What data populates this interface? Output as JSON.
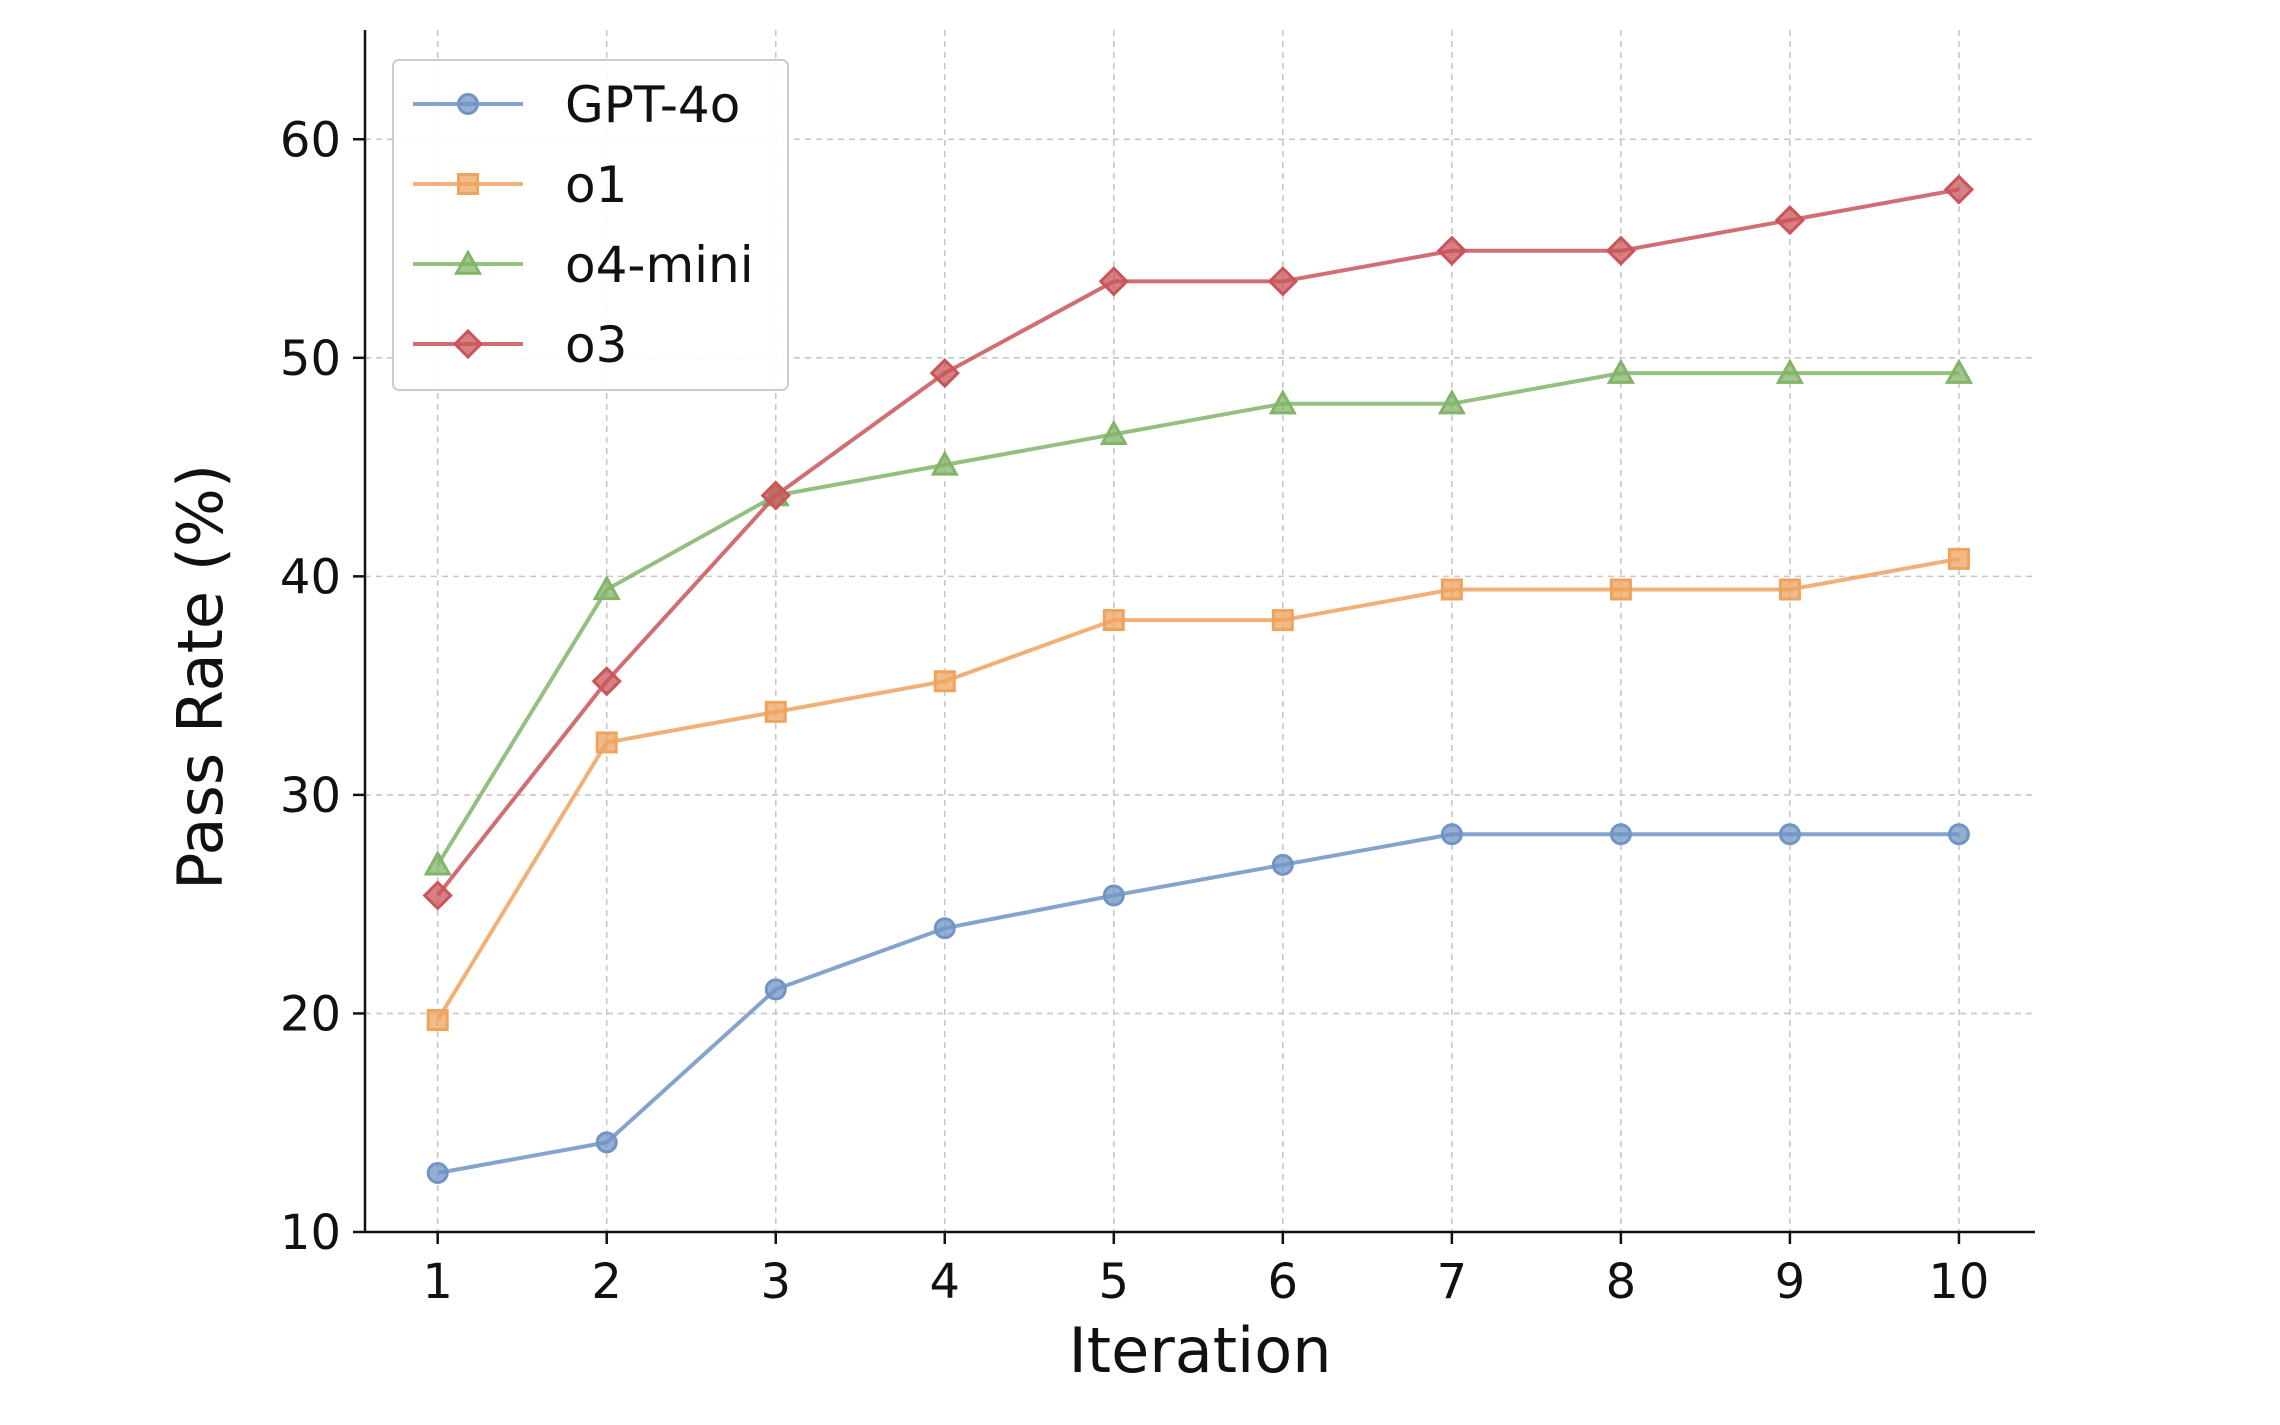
{
  "chart_data": {
    "type": "line",
    "title": "",
    "xlabel": "Iteration",
    "ylabel": "Pass Rate (%)",
    "x": [
      1,
      2,
      3,
      4,
      5,
      6,
      7,
      8,
      9,
      10
    ],
    "xticks": [
      "1",
      "2",
      "3",
      "4",
      "5",
      "6",
      "7",
      "8",
      "9",
      "10"
    ],
    "yticks": [
      10,
      20,
      30,
      40,
      50,
      60
    ],
    "xlim": [
      0.57,
      10.45
    ],
    "ylim": [
      10,
      65
    ],
    "grid": true,
    "legend_position": "top-left",
    "series": [
      {
        "name": "GPT-4o",
        "marker": "circle",
        "color": "#7094c4",
        "values": [
          12.7,
          14.1,
          21.1,
          23.9,
          25.4,
          26.8,
          28.2,
          28.2,
          28.2,
          28.2
        ]
      },
      {
        "name": "o1",
        "marker": "square",
        "color": "#eea35e",
        "values": [
          19.7,
          32.4,
          33.8,
          35.2,
          38.0,
          38.0,
          39.4,
          39.4,
          39.4,
          40.8
        ]
      },
      {
        "name": "o4-mini",
        "marker": "triangle",
        "color": "#82b46a",
        "values": [
          26.8,
          39.4,
          43.7,
          45.1,
          46.5,
          47.9,
          47.9,
          49.3,
          49.3,
          49.3
        ]
      },
      {
        "name": "o3",
        "marker": "diamond",
        "color": "#c9555a",
        "values": [
          25.4,
          35.2,
          43.7,
          49.3,
          53.5,
          53.5,
          54.9,
          54.9,
          56.3,
          57.7
        ]
      }
    ]
  }
}
